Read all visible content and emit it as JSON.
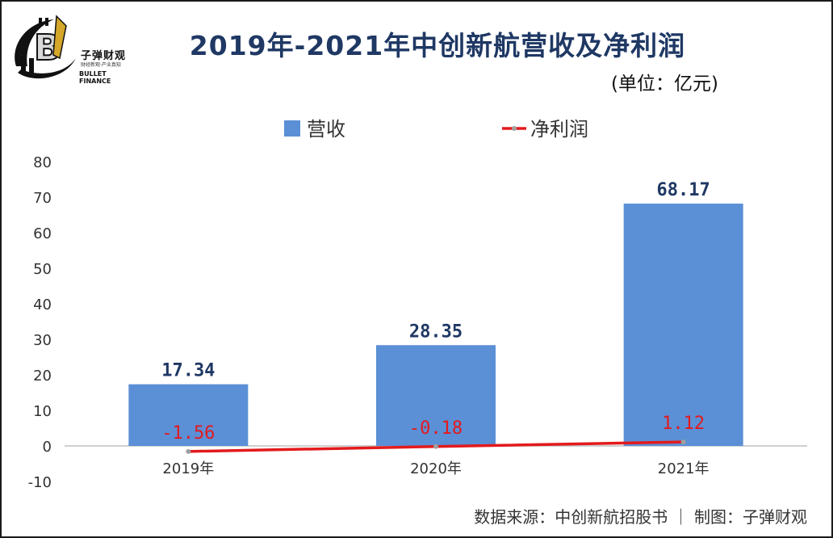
{
  "title": "2019年-2021年中创新航营收及净利润",
  "unit": "(单位：亿元)",
  "logo": {
    "name_cn": "子弹财观",
    "slogan": "财经新观·产业真知",
    "name_en": "BULLET FINANCE",
    "icon": "bitcoin-bullet-logo"
  },
  "footer": "数据来源：中创新航招股书 ｜ 制图：子弹财观",
  "chart_data": {
    "type": "bar",
    "categories": [
      "2019年",
      "2020年",
      "2021年"
    ],
    "series": [
      {
        "name": "营收",
        "type": "bar",
        "values": [
          17.34,
          28.35,
          68.17
        ],
        "labels": [
          "17.34",
          "28.35",
          "68.17"
        ],
        "color": "#5b8fd6",
        "label_color": "#1f3864"
      },
      {
        "name": "净利润",
        "type": "line",
        "values": [
          -1.56,
          -0.18,
          1.12
        ],
        "labels": [
          "-1.56",
          "-0.18",
          "1.12"
        ],
        "color": "#e31a1c",
        "label_color": "#e31a1c"
      }
    ],
    "ylim": [
      -10,
      80
    ],
    "yticks": [
      "80",
      "70",
      "60",
      "50",
      "40",
      "30",
      "20",
      "10",
      "0",
      "-10"
    ],
    "legend": "top-center",
    "grid": false
  }
}
